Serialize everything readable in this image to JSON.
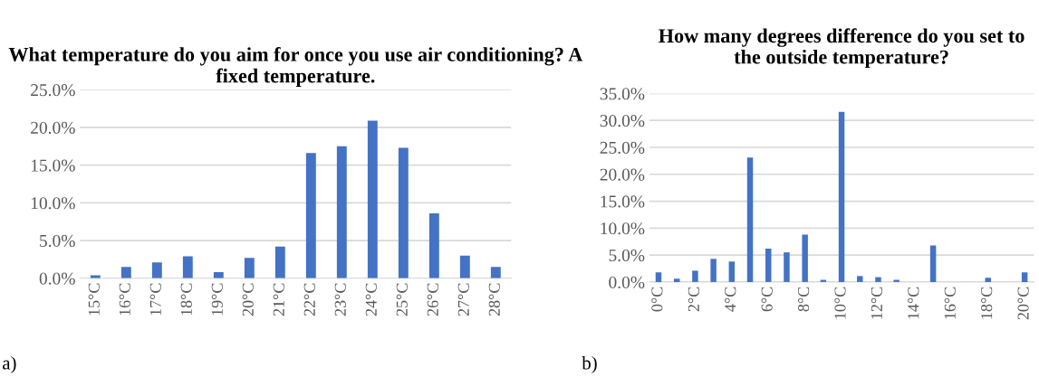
{
  "chart_data": [
    {
      "type": "bar",
      "title": "What temperature do you aim for once you use air conditioning? A fixed temperature.",
      "categories": [
        "15°C",
        "16°C",
        "17°C",
        "18°C",
        "19°C",
        "20°C",
        "21°C",
        "22°C",
        "23°C",
        "24°C",
        "25°C",
        "26°C",
        "27°C",
        "28°C"
      ],
      "values": [
        0.4,
        1.5,
        2.1,
        2.9,
        0.8,
        2.7,
        4.2,
        16.6,
        17.5,
        20.9,
        17.3,
        8.6,
        3.0,
        1.5
      ],
      "color": "#4472c4",
      "ylim": [
        0,
        25
      ],
      "yticks": [
        {
          "value": 0,
          "label": "0.0%"
        },
        {
          "value": 5,
          "label": "5.0%"
        },
        {
          "value": 10,
          "label": "10.0%"
        },
        {
          "value": 15,
          "label": "15.0%"
        },
        {
          "value": 20,
          "label": "20.0%"
        },
        {
          "value": 25,
          "label": "25.0%"
        }
      ],
      "grid": "y",
      "annotations": [
        "a)"
      ]
    },
    {
      "type": "bar",
      "title": "How many degrees difference do you set to the outside temperature?",
      "categories": [
        "0°C",
        null,
        "2°C",
        null,
        "4°C",
        null,
        "6°C",
        null,
        "8°C",
        null,
        "10°C",
        null,
        "12°C",
        null,
        "14°C",
        null,
        "16°C",
        null,
        "18°C",
        null,
        "20°C"
      ],
      "values": [
        1.8,
        0.6,
        2.1,
        4.3,
        3.8,
        23.1,
        6.2,
        5.5,
        8.8,
        0.4,
        31.6,
        1.1,
        0.9,
        0.4,
        0,
        6.8,
        0,
        0,
        0.8,
        0,
        1.8
      ],
      "color": "#4472c4",
      "ylim": [
        0,
        35
      ],
      "yticks": [
        {
          "value": 0,
          "label": "0.0%"
        },
        {
          "value": 5,
          "label": "5.0%"
        },
        {
          "value": 10,
          "label": "10.0%"
        },
        {
          "value": 15,
          "label": "15.0%"
        },
        {
          "value": 20,
          "label": "20.0%"
        },
        {
          "value": 25,
          "label": "25.0%"
        },
        {
          "value": 30,
          "label": "30.0%"
        },
        {
          "value": 35,
          "label": "35.0%"
        }
      ],
      "grid": "y",
      "annotations": [
        "b)"
      ]
    }
  ]
}
